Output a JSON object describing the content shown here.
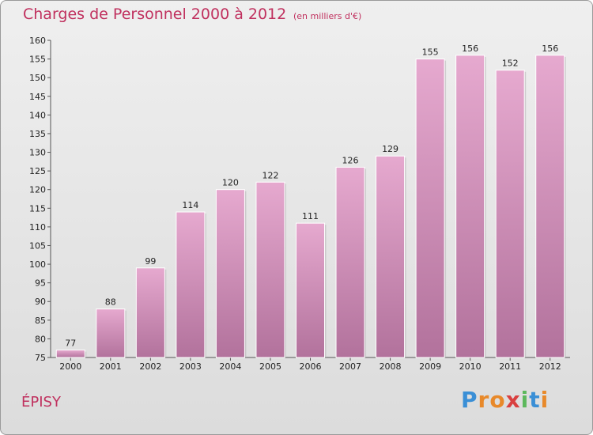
{
  "header": {
    "title": "Charges de Personnel 2000 à 2012",
    "subtitle": "(en milliers d'€)"
  },
  "commune": "ÉPISY",
  "logo": {
    "text": "Proxiti",
    "letters": [
      "P",
      "r",
      "o",
      "x",
      "i",
      "t",
      "i"
    ],
    "colors": [
      "#3a8fd6",
      "#e8892a",
      "#e8892a",
      "#d94040",
      "#5cb85c",
      "#3a8fd6",
      "#e8892a"
    ]
  },
  "chart_data": {
    "type": "bar",
    "categories": [
      "2000",
      "2001",
      "2002",
      "2003",
      "2004",
      "2005",
      "2006",
      "2007",
      "2008",
      "2009",
      "2010",
      "2011",
      "2012"
    ],
    "values": [
      77,
      88,
      99,
      114,
      120,
      122,
      111,
      126,
      129,
      155,
      156,
      152,
      156
    ],
    "ylim": [
      75,
      160
    ],
    "ytick_step": 5,
    "grid": false,
    "bar_color_top": "#e6a9cf",
    "bar_color_bottom": "#b2729c",
    "xlabel": "",
    "ylabel": ""
  }
}
